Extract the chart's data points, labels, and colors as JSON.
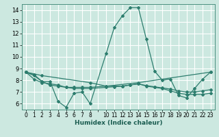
{
  "title": "",
  "xlabel": "Humidex (Indice chaleur)",
  "background_color": "#cce8e0",
  "grid_color": "#ffffff",
  "line_color": "#2d7d6e",
  "ylim": [
    5.5,
    14.5
  ],
  "yticks": [
    6,
    7,
    8,
    9,
    10,
    11,
    12,
    13,
    14
  ],
  "x_positions": [
    0,
    1,
    2,
    3,
    4,
    5,
    6,
    7,
    8,
    9,
    10,
    11,
    12,
    13,
    14,
    15,
    16,
    17,
    18,
    19,
    20,
    21,
    22,
    23
  ],
  "x_labels": [
    "0",
    "1",
    "2",
    "3",
    "4",
    "5",
    "6",
    "7",
    "8",
    "",
    "10",
    "11",
    "12",
    "13",
    "14",
    "15",
    "16",
    "17",
    "18",
    "19",
    "20",
    "21",
    "22",
    "23"
  ],
  "lines": [
    {
      "x": [
        0,
        1,
        2,
        3,
        4,
        5,
        6,
        7,
        8,
        10,
        11,
        12,
        13,
        14,
        15,
        16,
        17,
        18,
        19,
        20,
        21,
        22,
        23
      ],
      "xp": [
        0,
        1,
        2,
        3,
        4,
        5,
        6,
        7,
        8,
        10,
        11,
        12,
        13,
        14,
        15,
        16,
        17,
        18,
        19,
        20,
        21,
        22,
        23
      ],
      "y": [
        8.7,
        8.4,
        7.9,
        7.9,
        6.2,
        5.7,
        6.9,
        7.0,
        6.0,
        10.3,
        12.5,
        13.5,
        14.2,
        14.2,
        11.5,
        8.8,
        8.0,
        8.1,
        6.7,
        6.5,
        7.3,
        8.1,
        8.7
      ]
    },
    {
      "xp": [
        0,
        1,
        2,
        3,
        4,
        5,
        6,
        7,
        8,
        10,
        11,
        12,
        13,
        14,
        15,
        16,
        17,
        18,
        19,
        20,
        21,
        22,
        23
      ],
      "y": [
        8.7,
        8.5,
        7.9,
        7.6,
        7.5,
        7.4,
        7.4,
        7.4,
        7.4,
        7.5,
        7.5,
        7.5,
        7.6,
        7.7,
        7.5,
        7.4,
        7.3,
        7.1,
        6.9,
        6.8,
        6.8,
        6.8,
        6.9
      ]
    },
    {
      "xp": [
        0,
        1,
        2,
        3,
        4,
        5,
        6,
        7,
        8,
        10,
        11,
        12,
        13,
        14,
        15,
        16,
        17,
        18,
        19,
        20,
        21,
        22,
        23
      ],
      "y": [
        8.7,
        8.1,
        7.8,
        7.7,
        7.6,
        7.4,
        7.3,
        7.3,
        7.3,
        7.4,
        7.45,
        7.5,
        7.6,
        7.7,
        7.55,
        7.45,
        7.35,
        7.25,
        7.1,
        7.0,
        7.0,
        7.1,
        7.2
      ]
    },
    {
      "xp": [
        0,
        2,
        8,
        10,
        14,
        23
      ],
      "y": [
        8.7,
        8.4,
        7.8,
        7.5,
        7.8,
        8.7
      ]
    }
  ]
}
